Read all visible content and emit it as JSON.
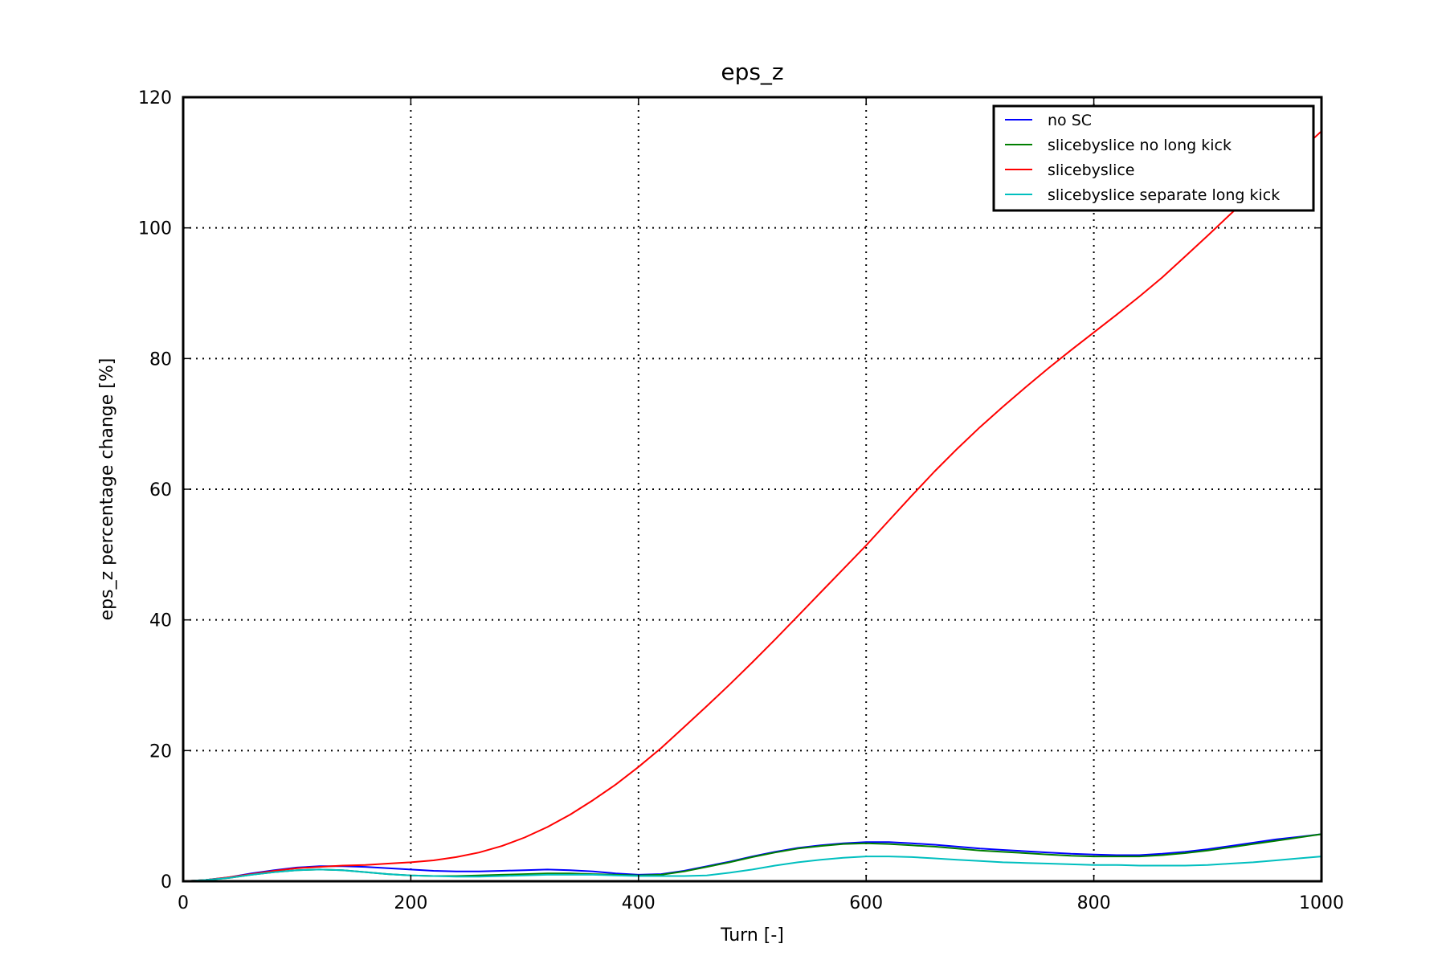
{
  "chart_data": {
    "type": "line",
    "title": "eps_z",
    "xlabel": "Turn [-]",
    "ylabel": "eps_z percentage change [%]",
    "xlim": [
      0,
      1000
    ],
    "ylim": [
      0,
      120
    ],
    "xticks": [
      0,
      200,
      400,
      600,
      800,
      1000
    ],
    "yticks": [
      0,
      20,
      40,
      60,
      80,
      100,
      120
    ],
    "grid": true,
    "legend_position": "top-right",
    "series": [
      {
        "name": "no SC",
        "color": "#0000ff",
        "x": [
          0,
          20,
          40,
          60,
          80,
          100,
          120,
          140,
          160,
          180,
          200,
          220,
          240,
          260,
          280,
          300,
          320,
          340,
          360,
          380,
          400,
          420,
          440,
          460,
          480,
          500,
          520,
          540,
          560,
          580,
          600,
          620,
          640,
          660,
          680,
          700,
          720,
          740,
          760,
          780,
          800,
          820,
          840,
          860,
          880,
          900,
          920,
          940,
          960,
          980,
          1000
        ],
        "y": [
          0,
          0.2,
          0.6,
          1.2,
          1.7,
          2.1,
          2.3,
          2.3,
          2.2,
          2.0,
          1.8,
          1.6,
          1.5,
          1.5,
          1.6,
          1.7,
          1.8,
          1.7,
          1.5,
          1.2,
          1.0,
          1.1,
          1.6,
          2.3,
          3.0,
          3.8,
          4.5,
          5.1,
          5.5,
          5.8,
          6.0,
          6.0,
          5.8,
          5.6,
          5.3,
          5.0,
          4.8,
          4.6,
          4.4,
          4.2,
          4.1,
          4.0,
          4.0,
          4.2,
          4.5,
          4.9,
          5.4,
          5.9,
          6.4,
          6.8,
          7.2
        ]
      },
      {
        "name": "slicebyslice no long kick",
        "color": "#007f00",
        "x": [
          0,
          20,
          40,
          60,
          80,
          100,
          120,
          140,
          160,
          180,
          200,
          220,
          240,
          260,
          280,
          300,
          320,
          340,
          360,
          380,
          400,
          420,
          440,
          460,
          480,
          500,
          520,
          540,
          560,
          580,
          600,
          620,
          640,
          660,
          680,
          700,
          720,
          740,
          760,
          780,
          800,
          820,
          840,
          860,
          880,
          900,
          920,
          940,
          960,
          980,
          1000
        ],
        "y": [
          0,
          0.2,
          0.5,
          1.0,
          1.4,
          1.7,
          1.8,
          1.7,
          1.4,
          1.1,
          0.9,
          0.8,
          0.8,
          0.9,
          1.0,
          1.1,
          1.2,
          1.2,
          1.1,
          1.0,
          0.9,
          1.0,
          1.5,
          2.2,
          2.9,
          3.7,
          4.4,
          5.0,
          5.4,
          5.7,
          5.8,
          5.7,
          5.5,
          5.3,
          5.0,
          4.7,
          4.5,
          4.3,
          4.1,
          3.9,
          3.8,
          3.8,
          3.8,
          4.0,
          4.3,
          4.7,
          5.2,
          5.7,
          6.2,
          6.7,
          7.2
        ]
      },
      {
        "name": "slicebyslice",
        "color": "#ff0000",
        "x": [
          0,
          20,
          40,
          60,
          80,
          100,
          120,
          140,
          160,
          180,
          200,
          220,
          240,
          260,
          280,
          300,
          320,
          340,
          360,
          380,
          400,
          420,
          440,
          460,
          480,
          500,
          520,
          540,
          560,
          580,
          600,
          620,
          640,
          660,
          680,
          700,
          720,
          740,
          760,
          780,
          800,
          820,
          840,
          860,
          880,
          900,
          920,
          940,
          960,
          980,
          1000
        ],
        "y": [
          0,
          0.2,
          0.6,
          1.1,
          1.6,
          2.0,
          2.2,
          2.4,
          2.5,
          2.7,
          2.9,
          3.2,
          3.7,
          4.4,
          5.4,
          6.7,
          8.3,
          10.2,
          12.4,
          14.8,
          17.5,
          20.4,
          23.6,
          26.8,
          30.1,
          33.5,
          37.0,
          40.6,
          44.2,
          47.8,
          51.4,
          55.2,
          59.0,
          62.7,
          66.2,
          69.5,
          72.6,
          75.6,
          78.5,
          81.3,
          84.0,
          86.7,
          89.5,
          92.4,
          95.6,
          98.8,
          102.1,
          105.3,
          108.5,
          111.6,
          114.8
        ]
      },
      {
        "name": "slicebyslice separate long kick",
        "color": "#00bfbf",
        "x": [
          0,
          20,
          40,
          60,
          80,
          100,
          120,
          140,
          160,
          180,
          200,
          220,
          240,
          260,
          280,
          300,
          320,
          340,
          360,
          380,
          400,
          420,
          440,
          460,
          480,
          500,
          520,
          540,
          560,
          580,
          600,
          620,
          640,
          660,
          680,
          700,
          720,
          740,
          760,
          780,
          800,
          820,
          840,
          860,
          880,
          900,
          920,
          940,
          960,
          980,
          1000
        ],
        "y": [
          0,
          0.2,
          0.5,
          1.0,
          1.4,
          1.7,
          1.8,
          1.7,
          1.4,
          1.1,
          0.9,
          0.8,
          0.7,
          0.7,
          0.8,
          0.9,
          1.0,
          1.0,
          1.0,
          0.9,
          0.8,
          0.8,
          0.8,
          0.9,
          1.3,
          1.8,
          2.4,
          2.9,
          3.3,
          3.6,
          3.8,
          3.8,
          3.7,
          3.5,
          3.3,
          3.1,
          2.9,
          2.8,
          2.7,
          2.6,
          2.5,
          2.5,
          2.4,
          2.4,
          2.4,
          2.5,
          2.7,
          2.9,
          3.2,
          3.5,
          3.8
        ]
      }
    ]
  }
}
